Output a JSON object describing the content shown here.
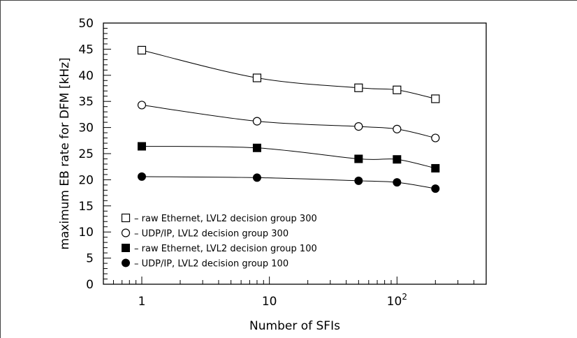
{
  "chart_data": {
    "type": "scatter",
    "title": "",
    "xlabel": "Number of SFIs",
    "ylabel": "maximum EB rate for DFM [kHz]",
    "xscale": "log",
    "xlim": [
      0.5,
      500
    ],
    "ylim": [
      0,
      50
    ],
    "yticks": [
      0,
      5,
      10,
      15,
      20,
      25,
      30,
      35,
      40,
      45,
      50
    ],
    "xtick_labels": [
      {
        "value": 1,
        "base": "1",
        "exp": ""
      },
      {
        "value": 10,
        "base": "10",
        "exp": ""
      },
      {
        "value": 100,
        "base": "10",
        "exp": "2"
      }
    ],
    "x": [
      1,
      8,
      50,
      100,
      200
    ],
    "grid": false,
    "legend_position": "bottom-left",
    "series": [
      {
        "name": "raw Ethernet, LVL2 decision group 300",
        "marker": "square-open",
        "values": [
          44.8,
          39.5,
          37.6,
          37.2,
          35.5
        ]
      },
      {
        "name": "UDP/IP, LVL2 decision group 300",
        "marker": "circle-open",
        "values": [
          34.3,
          31.2,
          30.2,
          29.7,
          28.0
        ]
      },
      {
        "name": "raw Ethernet, LVL2 decision group 100",
        "marker": "square-filled",
        "values": [
          26.4,
          26.1,
          24.0,
          23.9,
          22.2
        ]
      },
      {
        "name": "UDP/IP, LVL2 decision group 100",
        "marker": "circle-filled",
        "values": [
          20.6,
          20.4,
          19.8,
          19.5,
          18.3
        ]
      }
    ],
    "legend_dash": "–"
  }
}
